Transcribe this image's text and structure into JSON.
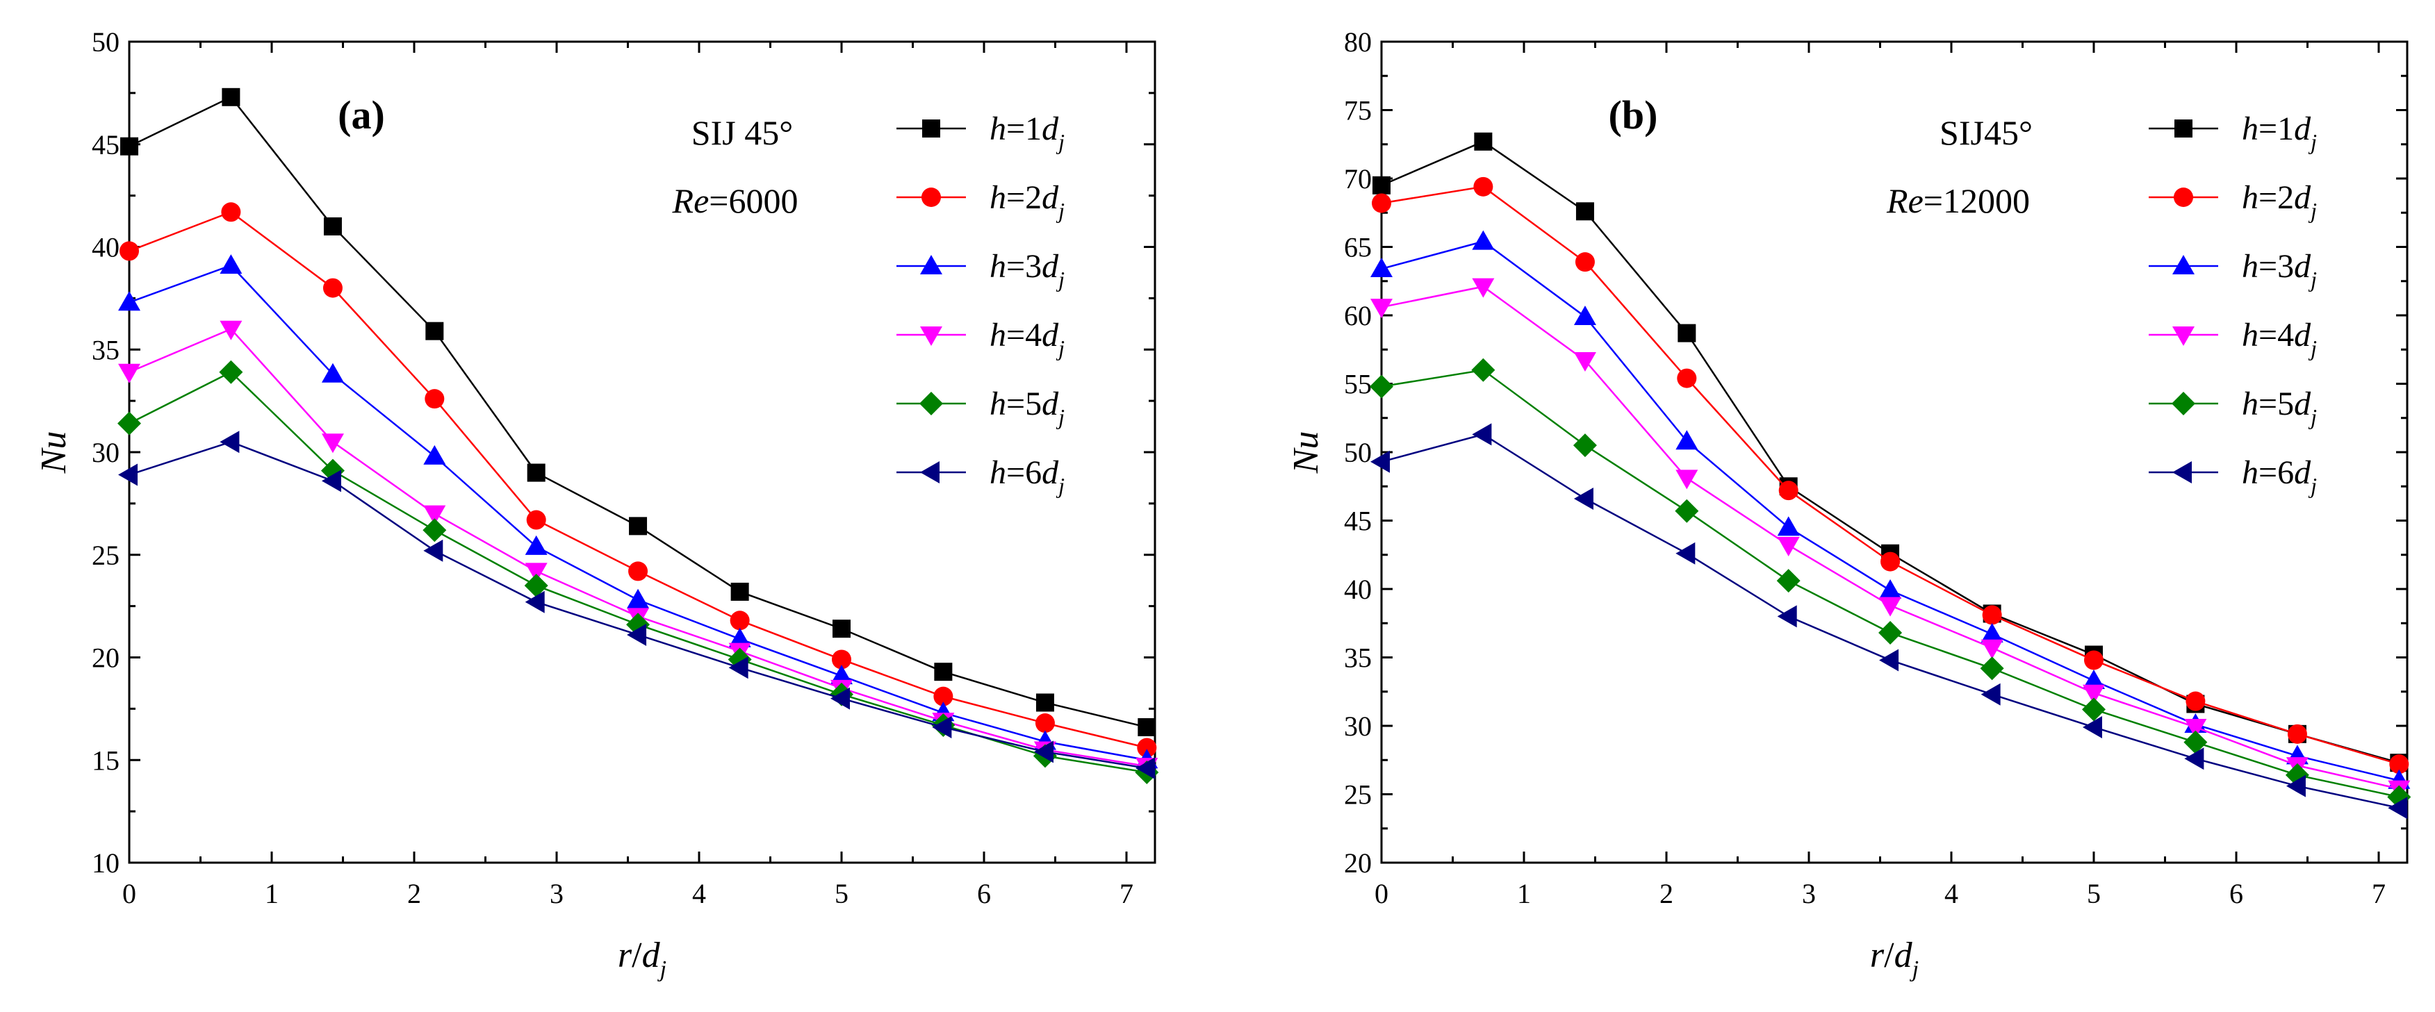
{
  "chart_data": [
    {
      "type": "line",
      "panel_label": "(a)",
      "annotation": {
        "line1": "SIJ 45°",
        "line2_var": "Re",
        "line2_rest": "=6000"
      },
      "xlabel": {
        "var": "r",
        "sep": "/",
        "var2": "d",
        "sub": "j"
      },
      "ylabel": "Nu",
      "xlim": [
        0,
        7.2
      ],
      "ylim": [
        10,
        50
      ],
      "xticks": [
        0,
        1,
        2,
        3,
        4,
        5,
        6,
        7
      ],
      "yticks": [
        10,
        15,
        20,
        25,
        30,
        35,
        40,
        45,
        50
      ],
      "x": [
        0,
        0.714,
        1.429,
        2.143,
        2.857,
        3.571,
        4.286,
        5.0,
        5.714,
        6.429,
        7.143
      ],
      "series": [
        {
          "name": "h=1d_j",
          "legend": {
            "v": "h",
            "eq": "=1",
            "d": "d",
            "s": "j"
          },
          "color": "#000000",
          "marker": "square",
          "values": [
            44.9,
            47.3,
            41.0,
            35.9,
            29.0,
            26.4,
            23.2,
            21.4,
            19.3,
            17.8,
            16.6
          ]
        },
        {
          "name": "h=2d_j",
          "legend": {
            "v": "h",
            "eq": "=2",
            "d": "d",
            "s": "j"
          },
          "color": "#ff0000",
          "marker": "circle",
          "values": [
            39.8,
            41.7,
            38.0,
            32.6,
            26.7,
            24.2,
            21.8,
            19.9,
            18.1,
            16.8,
            15.6
          ]
        },
        {
          "name": "h=3d_j",
          "legend": {
            "v": "h",
            "eq": "=3",
            "d": "d",
            "s": "j"
          },
          "color": "#0000ff",
          "marker": "triangle-up",
          "values": [
            37.3,
            39.1,
            33.8,
            29.8,
            25.4,
            22.8,
            20.9,
            19.1,
            17.3,
            15.9,
            15.0
          ]
        },
        {
          "name": "h=4d_j",
          "legend": {
            "v": "h",
            "eq": "=4",
            "d": "d",
            "s": "j"
          },
          "color": "#ff00ff",
          "marker": "triangle-down",
          "values": [
            33.9,
            36.0,
            30.5,
            27.0,
            24.2,
            22.0,
            20.3,
            18.5,
            16.9,
            15.5,
            14.7
          ]
        },
        {
          "name": "h=5d_j",
          "legend": {
            "v": "h",
            "eq": "=5",
            "d": "d",
            "s": "j"
          },
          "color": "#008000",
          "marker": "diamond",
          "values": [
            31.4,
            33.9,
            29.1,
            26.2,
            23.5,
            21.6,
            19.9,
            18.2,
            16.7,
            15.2,
            14.4
          ]
        },
        {
          "name": "h=6d_j",
          "legend": {
            "v": "h",
            "eq": "=6",
            "d": "d",
            "s": "j"
          },
          "color": "#000080",
          "marker": "triangle-left",
          "values": [
            28.9,
            30.5,
            28.6,
            25.2,
            22.7,
            21.1,
            19.5,
            18.0,
            16.6,
            15.4,
            14.6
          ]
        }
      ]
    },
    {
      "type": "line",
      "panel_label": "(b)",
      "annotation": {
        "line1": "SIJ45°",
        "line2_var": "Re",
        "line2_rest": "=12000"
      },
      "xlabel": {
        "var": "r",
        "sep": "/",
        "var2": "d",
        "sub": "j"
      },
      "ylabel": "Nu",
      "xlim": [
        0,
        7.2
      ],
      "ylim": [
        20,
        80
      ],
      "xticks": [
        0,
        1,
        2,
        3,
        4,
        5,
        6,
        7
      ],
      "yticks": [
        20,
        25,
        30,
        35,
        40,
        45,
        50,
        55,
        60,
        65,
        70,
        75,
        80
      ],
      "x": [
        0,
        0.714,
        1.429,
        2.143,
        2.857,
        3.571,
        4.286,
        5.0,
        5.714,
        6.429,
        7.143
      ],
      "series": [
        {
          "name": "h=1d_j",
          "legend": {
            "v": "h",
            "eq": "=1",
            "d": "d",
            "s": "j"
          },
          "color": "#000000",
          "marker": "square",
          "values": [
            69.5,
            72.7,
            67.6,
            58.7,
            47.5,
            42.6,
            38.2,
            35.2,
            31.6,
            29.4,
            27.3
          ]
        },
        {
          "name": "h=2d_j",
          "legend": {
            "v": "h",
            "eq": "=2",
            "d": "d",
            "s": "j"
          },
          "color": "#ff0000",
          "marker": "circle",
          "values": [
            68.2,
            69.4,
            63.9,
            55.4,
            47.2,
            42.0,
            38.1,
            34.8,
            31.8,
            29.4,
            27.2
          ]
        },
        {
          "name": "h=3d_j",
          "legend": {
            "v": "h",
            "eq": "=3",
            "d": "d",
            "s": "j"
          },
          "color": "#0000ff",
          "marker": "triangle-up",
          "values": [
            63.4,
            65.4,
            59.9,
            50.8,
            44.5,
            39.9,
            36.7,
            33.3,
            30.1,
            27.8,
            26.0
          ]
        },
        {
          "name": "h=4d_j",
          "legend": {
            "v": "h",
            "eq": "=4",
            "d": "d",
            "s": "j"
          },
          "color": "#ff00ff",
          "marker": "triangle-down",
          "values": [
            60.6,
            62.1,
            56.7,
            48.1,
            43.2,
            38.8,
            35.7,
            32.4,
            29.9,
            27.1,
            25.4
          ]
        },
        {
          "name": "h=5d_j",
          "legend": {
            "v": "h",
            "eq": "=5",
            "d": "d",
            "s": "j"
          },
          "color": "#008000",
          "marker": "diamond",
          "values": [
            54.8,
            56.0,
            50.5,
            45.7,
            40.6,
            36.8,
            34.2,
            31.2,
            28.8,
            26.4,
            24.8
          ]
        },
        {
          "name": "h=6d_j",
          "legend": {
            "v": "h",
            "eq": "=6",
            "d": "d",
            "s": "j"
          },
          "color": "#000080",
          "marker": "triangle-left",
          "values": [
            49.3,
            51.3,
            46.6,
            42.6,
            38.0,
            34.8,
            32.3,
            29.9,
            27.6,
            25.6,
            24.0
          ]
        }
      ]
    }
  ]
}
